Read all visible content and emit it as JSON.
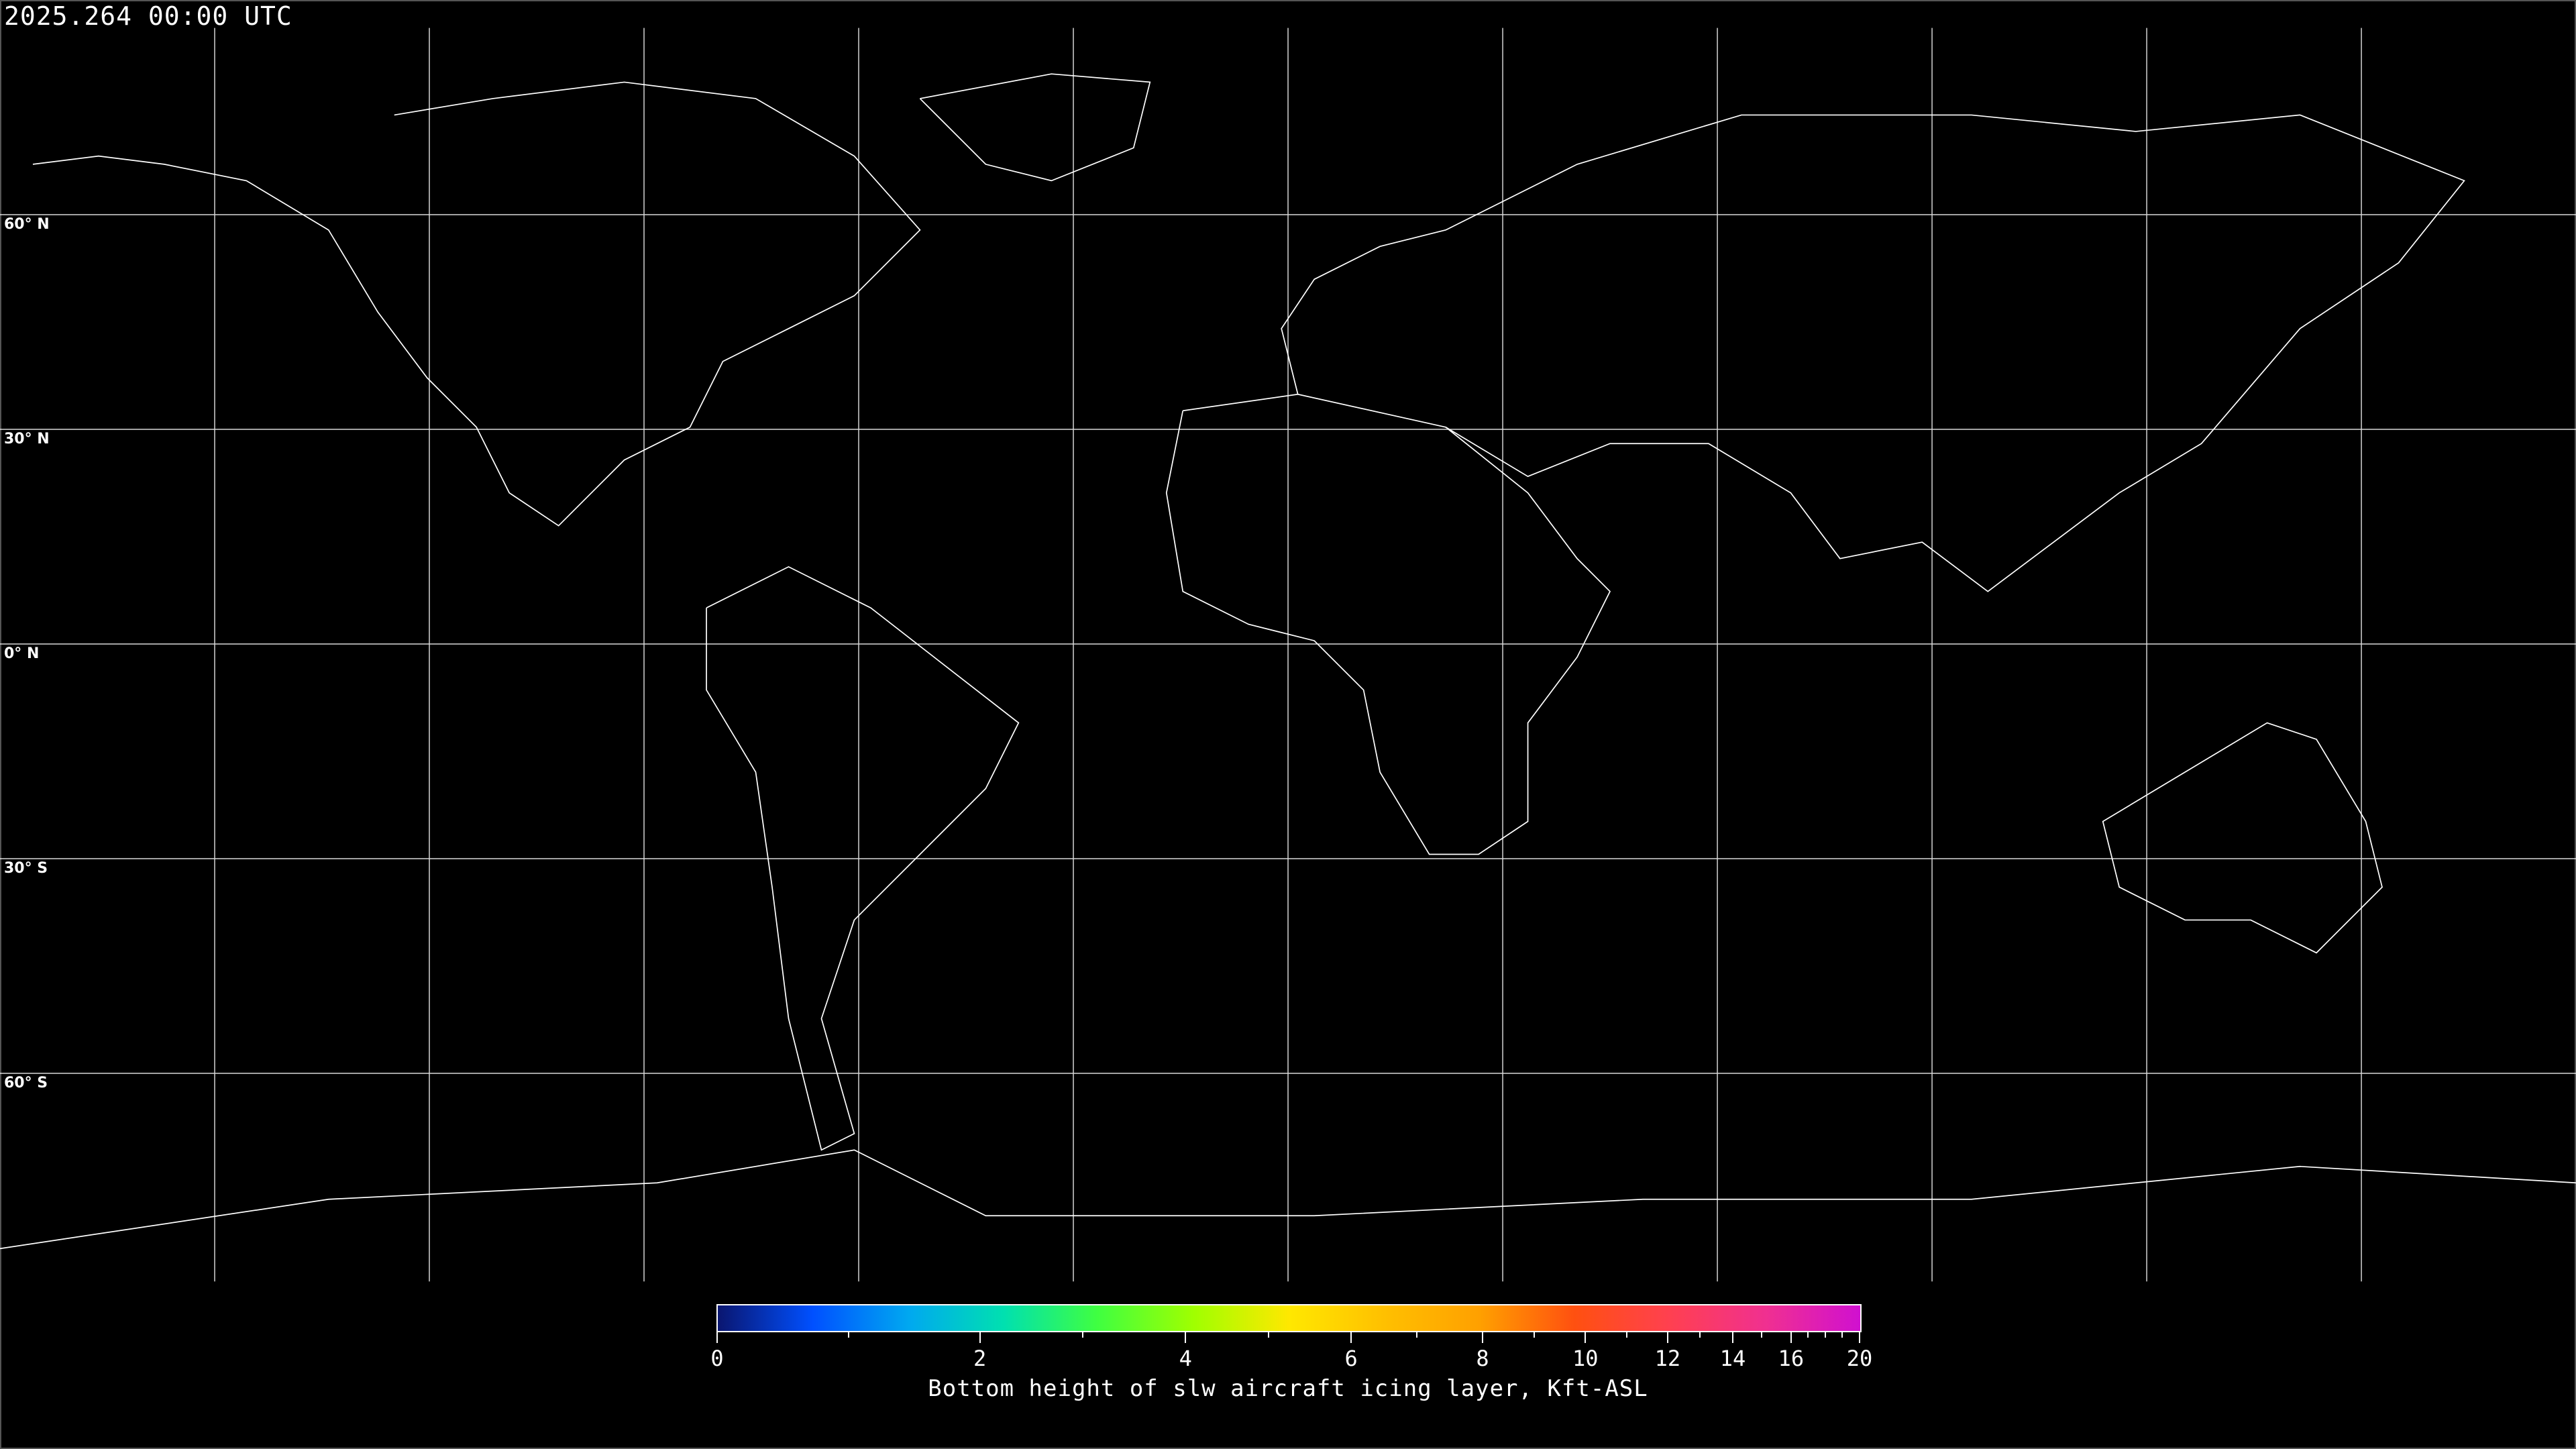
{
  "title": "2025.264 00:00 UTC",
  "latitude_labels": [
    "60° N",
    "30° N",
    "0° N",
    "30° S",
    "60° S"
  ],
  "colorbar": {
    "label": "Bottom height of slw aircraft icing layer, Kft-ASL",
    "min": 0,
    "max": 20,
    "major_ticks": [
      "0",
      "2",
      "4",
      "6",
      "8",
      "10",
      "12",
      "14",
      "16",
      "20"
    ],
    "minor_ticks": [
      1,
      3,
      5,
      7,
      9,
      11,
      13,
      15,
      17,
      18,
      19
    ],
    "colormap": [
      "#0a1670",
      "#0050ff",
      "#00a8f0",
      "#00e0b0",
      "#40ff40",
      "#a0ff00",
      "#ffe800",
      "#ffc000",
      "#ffa000",
      "#ff5010",
      "#ff4050",
      "#f03090",
      "#d010d0"
    ]
  },
  "colors": {
    "gridlines": "#ffffff",
    "coastlines": "#ffffff",
    "background": "#000000"
  }
}
